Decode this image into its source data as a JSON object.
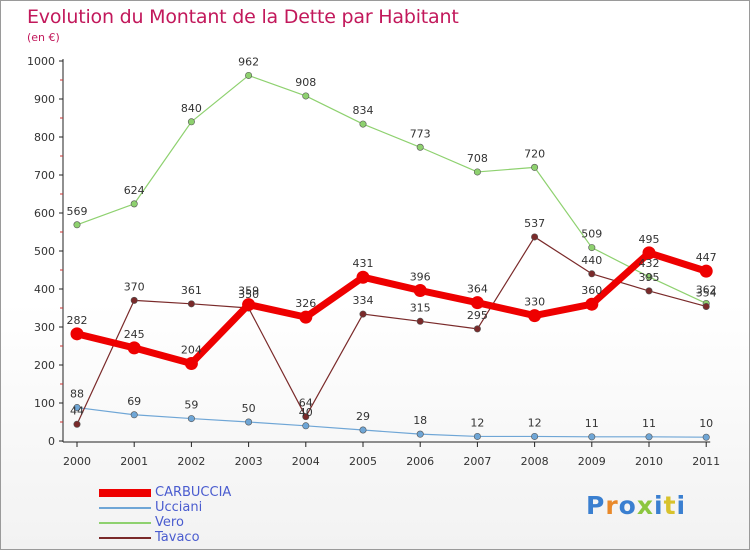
{
  "header": {
    "title": "Evolution du Montant de la Dette par Habitant",
    "subtitle": "(en €)"
  },
  "logo": {
    "text": "Proxiti",
    "colors": [
      "#3a7fd0",
      "#e9892a",
      "#3a7fd0",
      "#8cc63f",
      "#3a7fd0",
      "#d8c22c",
      "#3a7fd0"
    ]
  },
  "chart_data": {
    "type": "line",
    "title": "Evolution du Montant de la Dette par Habitant",
    "subtitle": "(en €)",
    "xlabel": "",
    "ylabel": "",
    "x": [
      "2000",
      "2001",
      "2002",
      "2003",
      "2004",
      "2005",
      "2006",
      "2007",
      "2008",
      "2009",
      "2010",
      "2011"
    ],
    "ylim": [
      0,
      1000
    ],
    "yticks": [
      0,
      100,
      200,
      300,
      400,
      500,
      600,
      700,
      800,
      900,
      1000
    ],
    "grid": false,
    "legend_position": "bottom-left",
    "series": [
      {
        "name": "CARBUCCIA",
        "color": "#ee0000",
        "weight": "thick",
        "values": [
          282,
          245,
          204,
          359,
          326,
          431,
          396,
          364,
          330,
          360,
          495,
          447
        ]
      },
      {
        "name": "Ucciani",
        "color": "#6fa6d6",
        "weight": "thin",
        "values": [
          88,
          69,
          59,
          50,
          40,
          29,
          18,
          12,
          12,
          11,
          11,
          10
        ]
      },
      {
        "name": "Vero",
        "color": "#8ed16f",
        "weight": "thin",
        "values": [
          569,
          624,
          840,
          962,
          908,
          834,
          773,
          708,
          720,
          509,
          432,
          362
        ]
      },
      {
        "name": "Tavaco",
        "color": "#7a2a2a",
        "weight": "thin",
        "values": [
          44,
          370,
          361,
          350,
          64,
          334,
          315,
          295,
          537,
          440,
          395,
          354
        ]
      }
    ]
  }
}
